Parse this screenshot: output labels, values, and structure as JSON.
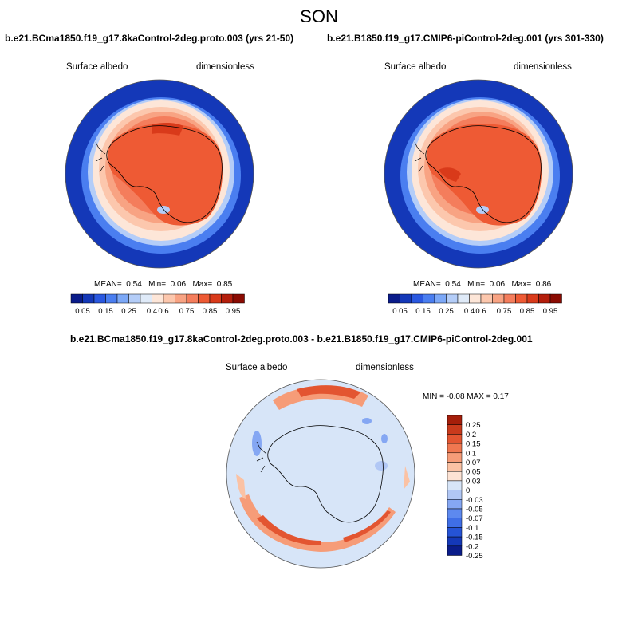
{
  "season": "SON",
  "colors": {
    "abs_levels": [
      "#0a1c8a",
      "#1438b8",
      "#2a58e0",
      "#4a7ef0",
      "#7ca8f7",
      "#b4cdf8",
      "#dfeaf8",
      "#fde6d8",
      "#fcc7ad",
      "#f8a383",
      "#f47d5c",
      "#ee5a34",
      "#d93a1a",
      "#b41e0c",
      "#8a0b02"
    ],
    "diff_levels": [
      "#0a1c8a",
      "#1438b8",
      "#2553d6",
      "#3f6ee6",
      "#5d89ef",
      "#85a7f3",
      "#b1c7f5",
      "#d7e5f8",
      "#fde3d4",
      "#fbc2a4",
      "#f69c78",
      "#f07750",
      "#e35531",
      "#c93a1c",
      "#a51e0a"
    ],
    "coast": "#000000"
  },
  "panels": [
    {
      "title": "b.e21.BCma1850.f19_g17.8kaControl-2deg.proto.003 (yrs 21-50)",
      "left_label": "Surface albedo",
      "right_label": "dimensionless",
      "mean_label": "MEAN=",
      "mean": "0.54",
      "min_label": "Min=",
      "min": "0.06",
      "max_label": "Max=",
      "max": "0.85"
    },
    {
      "title": "b.e21.B1850.f19_g17.CMIP6-piControl-2deg.001 (yrs 301-330)",
      "left_label": "Surface albedo",
      "right_label": "dimensionless",
      "mean_label": "MEAN=",
      "mean": "0.54",
      "min_label": "Min=",
      "min": "0.06",
      "max_label": "Max=",
      "max": "0.86"
    }
  ],
  "abs_colorbar_ticks": [
    "0.05",
    "0.15",
    "0.25",
    "0.4",
    "0.6",
    "0.75",
    "0.85",
    "0.95"
  ],
  "diff": {
    "title": "b.e21.BCma1850.f19_g17.8kaControl-2deg.proto.003 - b.e21.B1850.f19_g17.CMIP6-piControl-2deg.001",
    "left_label": "Surface albedo",
    "right_label": "dimensionless",
    "minmax": "MIN = -0.08 MAX = 0.17",
    "colorbar_ticks": [
      "0.25",
      "0.2",
      "0.15",
      "0.1",
      "0.07",
      "0.05",
      "0.03",
      "0",
      "-0.03",
      "-0.05",
      "-0.07",
      "-0.1",
      "-0.15",
      "-0.2",
      "-0.25"
    ]
  }
}
